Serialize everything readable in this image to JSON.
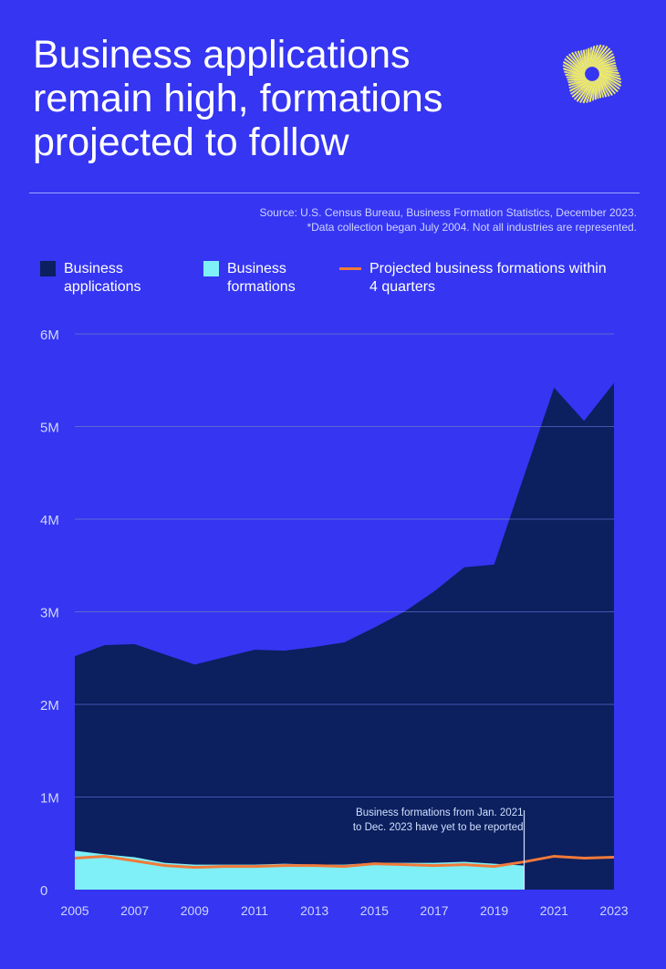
{
  "title": "Business applications remain high, formations projected to follow",
  "source": {
    "line1": "Source: U.S. Census Bureau, Business Formation Statistics, December 2023.",
    "line2": "*Data collection began July 2004. Not all industries are represented."
  },
  "colors": {
    "background": "#3535f2",
    "applications": "#0c1f5e",
    "formations": "#7ff0f7",
    "projected": "#f07a3a",
    "logo": "#f3ee5a"
  },
  "logo_icon": "sunburst-logo",
  "chart_data": {
    "type": "area",
    "x": [
      2005,
      2006,
      2007,
      2008,
      2009,
      2010,
      2011,
      2012,
      2013,
      2014,
      2015,
      2016,
      2017,
      2018,
      2019,
      2020,
      2021,
      2022,
      2023
    ],
    "xticks": [
      "2005",
      "2007",
      "2009",
      "2011",
      "2013",
      "2015",
      "2017",
      "2019",
      "2021",
      "2023"
    ],
    "yticks": [
      "0",
      "1M",
      "2M",
      "3M",
      "4M",
      "5M",
      "6M"
    ],
    "ylim": [
      0,
      6000000
    ],
    "grid": true,
    "legend_placement": "top",
    "series": [
      {
        "name": "Business applications",
        "type": "area",
        "values": [
          2520000,
          2640000,
          2650000,
          2540000,
          2430000,
          2510000,
          2590000,
          2580000,
          2620000,
          2670000,
          2830000,
          3000000,
          3220000,
          3480000,
          3510000,
          4470000,
          5420000,
          5060000,
          5470000
        ]
      },
      {
        "name": "Business formations",
        "type": "area",
        "values": [
          420000,
          380000,
          350000,
          290000,
          270000,
          270000,
          270000,
          280000,
          270000,
          270000,
          290000,
          290000,
          290000,
          300000,
          280000,
          260000,
          null,
          null,
          null
        ]
      },
      {
        "name": "Projected business formations within 4 quarters",
        "type": "line",
        "values": [
          340000,
          360000,
          310000,
          260000,
          240000,
          250000,
          250000,
          260000,
          260000,
          250000,
          280000,
          270000,
          260000,
          270000,
          250000,
          300000,
          360000,
          340000,
          350000
        ]
      }
    ],
    "legend": [
      "Business applications",
      "Business formations",
      "Projected business formations within 4 quarters"
    ],
    "annotation": {
      "x": 2020,
      "text1": "Business formations from Jan. 2021",
      "text2": "to Dec. 2023 have yet to be reported"
    }
  }
}
